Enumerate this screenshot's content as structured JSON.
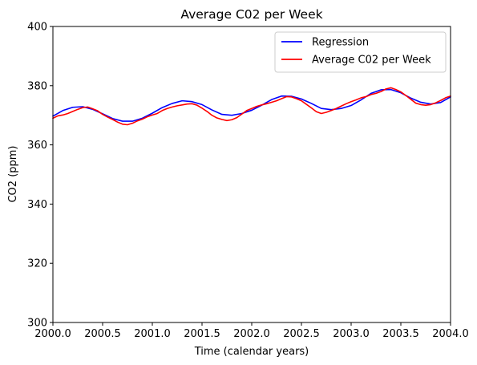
{
  "chart_data": {
    "type": "line",
    "title": "Average C02 per Week",
    "xlabel": "Time (calendar years)",
    "ylabel": "CO2 (ppm)",
    "xlim": [
      2000.0,
      2004.0
    ],
    "ylim": [
      300,
      400
    ],
    "xticks": [
      2000.0,
      2000.5,
      2001.0,
      2001.5,
      2002.0,
      2002.5,
      2003.0,
      2003.5,
      2004.0
    ],
    "xtick_labels": [
      "2000.0",
      "2000.5",
      "2001.0",
      "2001.5",
      "2002.0",
      "2002.5",
      "2003.0",
      "2003.5",
      "2004.0"
    ],
    "yticks": [
      300,
      320,
      340,
      360,
      380,
      400
    ],
    "ytick_labels": [
      "300",
      "320",
      "340",
      "360",
      "380",
      "400"
    ],
    "grid": false,
    "legend_position": "top-right",
    "series": [
      {
        "name": "Regression",
        "color": "#0000ff",
        "x": [
          2000.0,
          2000.1,
          2000.2,
          2000.3,
          2000.4,
          2000.5,
          2000.6,
          2000.7,
          2000.8,
          2000.9,
          2001.0,
          2001.1,
          2001.2,
          2001.3,
          2001.4,
          2001.5,
          2001.6,
          2001.7,
          2001.8,
          2001.9,
          2002.0,
          2002.1,
          2002.2,
          2002.3,
          2002.4,
          2002.5,
          2002.6,
          2002.7,
          2002.8,
          2002.9,
          2003.0,
          2003.1,
          2003.2,
          2003.3,
          2003.4,
          2003.5,
          2003.6,
          2003.7,
          2003.8,
          2003.9,
          2004.0
        ],
        "values": [
          369.7,
          371.6,
          372.7,
          372.9,
          372.0,
          370.5,
          368.9,
          368.0,
          368.0,
          369.0,
          370.7,
          372.6,
          374.0,
          374.9,
          374.6,
          373.6,
          371.8,
          370.3,
          370.0,
          370.6,
          371.7,
          373.4,
          375.3,
          376.5,
          376.4,
          375.5,
          374.0,
          372.3,
          371.9,
          372.3,
          373.3,
          375.2,
          377.4,
          378.6,
          378.7,
          377.6,
          375.8,
          374.4,
          373.8,
          374.3,
          376.2
        ]
      },
      {
        "name": "Average C02 per Week",
        "color": "#ff0000",
        "x": [
          2000.0,
          2000.05,
          2000.1,
          2000.15,
          2000.2,
          2000.25,
          2000.3,
          2000.35,
          2000.4,
          2000.45,
          2000.5,
          2000.55,
          2000.6,
          2000.65,
          2000.7,
          2000.75,
          2000.8,
          2000.85,
          2000.9,
          2000.95,
          2001.0,
          2001.05,
          2001.1,
          2001.15,
          2001.2,
          2001.25,
          2001.3,
          2001.35,
          2001.4,
          2001.45,
          2001.5,
          2001.55,
          2001.6,
          2001.65,
          2001.7,
          2001.75,
          2001.8,
          2001.85,
          2001.9,
          2001.95,
          2002.0,
          2002.05,
          2002.1,
          2002.15,
          2002.2,
          2002.25,
          2002.3,
          2002.35,
          2002.4,
          2002.45,
          2002.5,
          2002.55,
          2002.6,
          2002.65,
          2002.7,
          2002.75,
          2002.8,
          2002.85,
          2002.9,
          2002.95,
          2003.0,
          2003.05,
          2003.1,
          2003.15,
          2003.2,
          2003.25,
          2003.3,
          2003.35,
          2003.4,
          2003.45,
          2003.5,
          2003.55,
          2003.6,
          2003.65,
          2003.7,
          2003.75,
          2003.8,
          2003.85,
          2003.9,
          2003.95,
          2004.0
        ],
        "values": [
          369.0,
          369.8,
          370.1,
          370.6,
          371.3,
          372.0,
          372.6,
          372.8,
          372.2,
          371.5,
          370.3,
          369.4,
          368.6,
          367.7,
          367.0,
          366.8,
          367.3,
          368.1,
          368.7,
          369.5,
          370.1,
          370.6,
          371.6,
          372.3,
          372.8,
          373.2,
          373.5,
          373.8,
          373.9,
          373.4,
          372.4,
          371.3,
          370.0,
          369.1,
          368.6,
          368.2,
          368.5,
          369.2,
          370.4,
          371.6,
          372.3,
          373.0,
          373.5,
          373.9,
          374.4,
          374.9,
          375.6,
          376.3,
          376.2,
          375.6,
          374.9,
          373.7,
          372.5,
          371.2,
          370.6,
          371.0,
          371.6,
          372.3,
          373.1,
          373.9,
          374.6,
          375.2,
          375.9,
          376.3,
          377.0,
          377.4,
          378.0,
          378.9,
          379.3,
          378.7,
          377.9,
          376.7,
          375.4,
          374.1,
          373.6,
          373.4,
          373.6,
          374.2,
          375.0,
          375.9,
          376.5
        ]
      }
    ]
  }
}
